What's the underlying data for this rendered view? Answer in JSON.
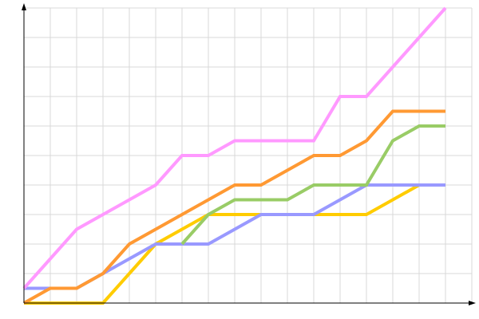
{
  "chart_data": {
    "type": "line",
    "title": "",
    "xlabel": "",
    "ylabel": "",
    "x": [
      0,
      1,
      2,
      3,
      4,
      5,
      6,
      7,
      8,
      9,
      10,
      11,
      12,
      13,
      14,
      15,
      16
    ],
    "xlim": [
      0,
      17
    ],
    "ylim": [
      0,
      10
    ],
    "grid": true,
    "legend": "none",
    "series": [
      {
        "color": "#ffcc00",
        "x": [
          0,
          1,
          2,
          3,
          4,
          5,
          6,
          7,
          8,
          9,
          10,
          11,
          12,
          13,
          14,
          15
        ],
        "values": [
          0,
          0,
          0,
          0,
          1,
          2,
          2.5,
          3,
          3,
          3,
          3,
          3,
          3,
          3,
          3.5,
          4
        ]
      },
      {
        "color": "#9999ff",
        "x": [
          0,
          1,
          2,
          3,
          4,
          5,
          6,
          7,
          8,
          9,
          10,
          11,
          12,
          13,
          14,
          15,
          16
        ],
        "values": [
          0.5,
          0.5,
          0.5,
          1,
          1.5,
          2,
          2,
          2,
          2.5,
          3,
          3,
          3,
          3.5,
          4,
          4,
          4,
          4
        ]
      },
      {
        "color": "#99cc66",
        "x": [
          6,
          7,
          8,
          9,
          10,
          11,
          12,
          13,
          14,
          15,
          16
        ],
        "values": [
          2,
          3,
          3.5,
          3.5,
          3.5,
          4,
          4,
          4,
          5.5,
          6,
          6
        ]
      },
      {
        "color": "#ff9933",
        "x": [
          0,
          1,
          2,
          3,
          4,
          5,
          6,
          7,
          8,
          9,
          10,
          11,
          12,
          13,
          14,
          15,
          16
        ],
        "values": [
          0,
          0.5,
          0.5,
          1,
          2,
          2.5,
          3,
          3.5,
          4,
          4,
          4.5,
          5,
          5,
          5.5,
          6.5,
          6.5,
          6.5
        ]
      },
      {
        "color": "#ff99ff",
        "x": [
          0,
          1,
          2,
          3,
          4,
          5,
          6,
          7,
          8,
          9,
          10,
          11,
          12,
          13,
          14,
          15,
          16
        ],
        "values": [
          0.5,
          1.5,
          2.5,
          3,
          3.5,
          4,
          5,
          5,
          5.5,
          5.5,
          5.5,
          5.5,
          7,
          7,
          8,
          9,
          10
        ]
      }
    ]
  }
}
